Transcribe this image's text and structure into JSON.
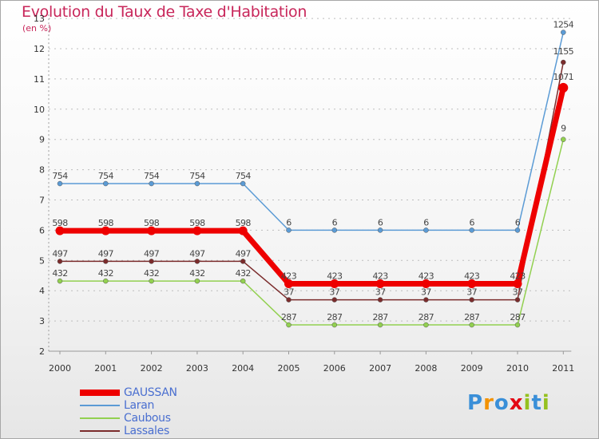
{
  "chart_data": {
    "type": "line",
    "title": "Evolution du Taux de Taxe d'Habitation",
    "unit_label": "(en %)",
    "x": [
      "2000",
      "2001",
      "2002",
      "2003",
      "2004",
      "2005",
      "2006",
      "2007",
      "2008",
      "2009",
      "2010",
      "2011"
    ],
    "ylim": [
      2,
      13
    ],
    "yticks": [
      2,
      3,
      4,
      5,
      6,
      7,
      8,
      9,
      10,
      11,
      12,
      13
    ],
    "series": [
      {
        "name": "GAUSSAN",
        "color": "#ee0000",
        "values": [
          5.98,
          5.98,
          5.98,
          5.98,
          5.98,
          4.23,
          4.23,
          4.23,
          4.23,
          4.23,
          4.23,
          10.71
        ]
      },
      {
        "name": "Laran",
        "color": "#5b9bd5",
        "values": [
          7.54,
          7.54,
          7.54,
          7.54,
          7.54,
          6,
          6,
          6,
          6,
          6,
          6,
          12.54
        ]
      },
      {
        "name": "Caubous",
        "color": "#92d050",
        "values": [
          4.32,
          4.32,
          4.32,
          4.32,
          4.32,
          2.87,
          2.87,
          2.87,
          2.87,
          2.87,
          2.87,
          9
        ]
      },
      {
        "name": "Lassales",
        "color": "#7b2c2c",
        "values": [
          4.97,
          4.97,
          4.97,
          4.97,
          4.97,
          3.7,
          3.7,
          3.7,
          3.7,
          3.7,
          3.7,
          11.55
        ]
      }
    ],
    "legend_position": "bottom-left"
  },
  "brand": {
    "letters": [
      "P",
      "r",
      "o",
      "x",
      "i",
      "t",
      "i"
    ],
    "colors": [
      "#3a8fd8",
      "#f39200",
      "#3a8fd8",
      "#e30613",
      "#95c11f",
      "#3a8fd8",
      "#95c11f"
    ]
  }
}
